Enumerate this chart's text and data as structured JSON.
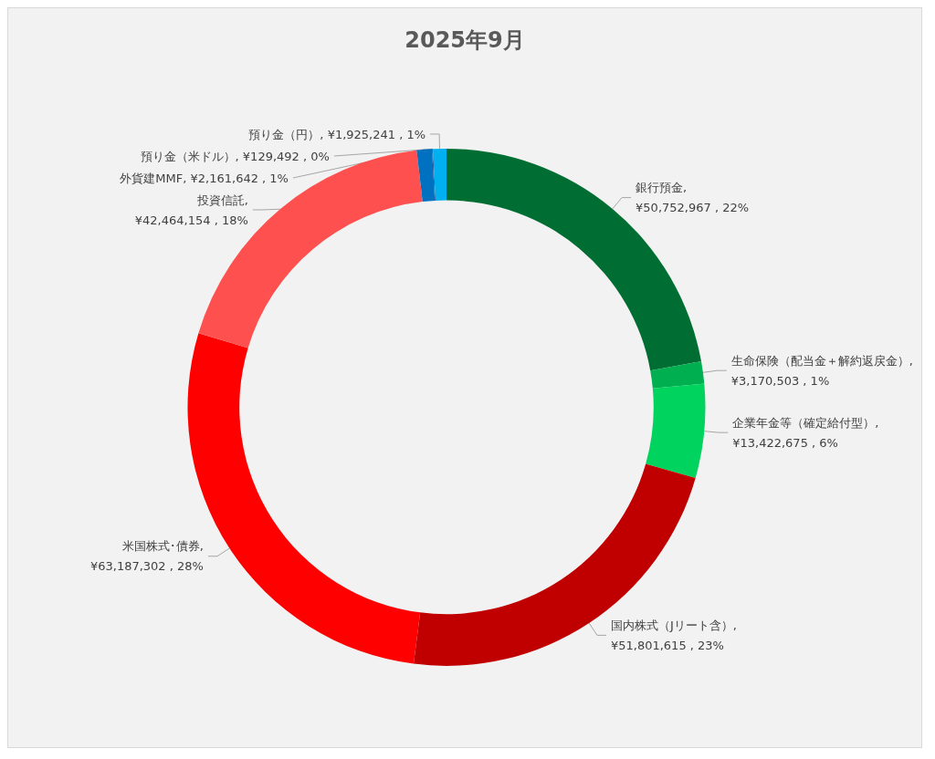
{
  "chart_data": {
    "type": "donut",
    "title": "2025年9月",
    "categories": [
      "銀行預金",
      "生命保険（配当金＋解約返戻金）",
      "企業年金等（確定給付型）",
      "国内株式（Jリート含）",
      "米国株式･債券",
      "投資信託",
      "外貨建MMF",
      "預り金（米ドル）",
      "預り金（円）"
    ],
    "values": [
      50752967,
      3170503,
      13422675,
      51801615,
      63187302,
      42464154,
      2161642,
      129492,
      1925241
    ],
    "colors": [
      "#006e32",
      "#00b050",
      "#00d45f",
      "#c00000",
      "#ff0000",
      "#ff5050",
      "#0070c0",
      "#1f4e9a",
      "#00b0f0"
    ],
    "value_labels": [
      ", ¥50,752,967 , 22%",
      ", ¥3,170,503 , 1%",
      ", ¥13,422,675 , 6%",
      ", ¥51,801,615 , 23%",
      ", ¥63,187,302 , 28%",
      ", ¥42,464,154 , 18%",
      ", ¥2,161,642 , 1%",
      ", ¥129,492 , 0%",
      ", ¥1,925,241 , 1%"
    ],
    "legend": false
  }
}
